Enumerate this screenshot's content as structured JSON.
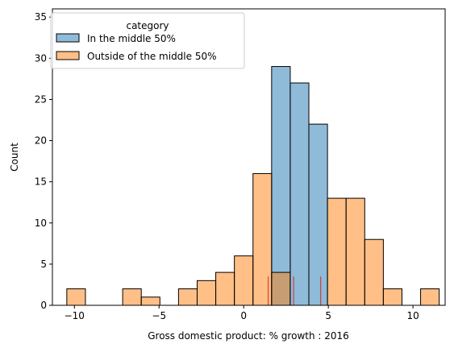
{
  "chart_data": {
    "type": "bar",
    "subtype": "stacked-histogram",
    "title": "",
    "xlabel": "Gross domestic product: % growth : 2016",
    "ylabel": "Count",
    "xlim": [
      -11.3,
      11.9
    ],
    "ylim": [
      0,
      36
    ],
    "xticks": [
      -10,
      -5,
      0,
      5,
      10
    ],
    "yticks": [
      0,
      5,
      10,
      15,
      20,
      25,
      30,
      35
    ],
    "xtick_labels": [
      "−10",
      "−5",
      "0",
      "5",
      "10"
    ],
    "ytick_labels": [
      "0",
      "5",
      "10",
      "15",
      "20",
      "25",
      "30",
      "35"
    ],
    "grid": false,
    "bin_width": 1.1,
    "bins_start": [
      -10.45,
      -9.35,
      -8.25,
      -7.15,
      -6.05,
      -4.95,
      -3.85,
      -2.75,
      -1.65,
      -0.55,
      0.55,
      1.65,
      2.75,
      3.85,
      4.95,
      6.05,
      7.15,
      8.25,
      9.35,
      10.45
    ],
    "legend": {
      "title": "category",
      "placement": "top-left",
      "entries": [
        {
          "name": "In the middle 50%",
          "color": "#1f77b4"
        },
        {
          "name": "Outside of the middle 50%",
          "color": "#ff7f0e"
        }
      ]
    },
    "series": [
      {
        "name": "In the middle 50%",
        "color": "#1f77b4",
        "alpha": 0.5,
        "values": [
          0,
          0,
          0,
          0,
          0,
          0,
          0,
          0,
          0,
          0,
          0,
          29,
          27,
          22,
          0,
          0,
          0,
          0,
          0,
          0
        ]
      },
      {
        "name": "Outside of the middle 50%",
        "color": "#ff7f0e",
        "alpha": 0.5,
        "values": [
          2,
          0,
          0,
          2,
          1,
          0,
          2,
          3,
          4,
          6,
          16,
          4,
          0,
          0,
          13,
          13,
          8,
          2,
          0,
          2
        ]
      }
    ],
    "vlines": [
      {
        "x": 1.45,
        "y": 3.5,
        "color": "#d62728"
      },
      {
        "x": 2.95,
        "y": 3.5,
        "color": "#d62728"
      },
      {
        "x": 4.55,
        "y": 3.5,
        "color": "#d62728"
      }
    ]
  }
}
